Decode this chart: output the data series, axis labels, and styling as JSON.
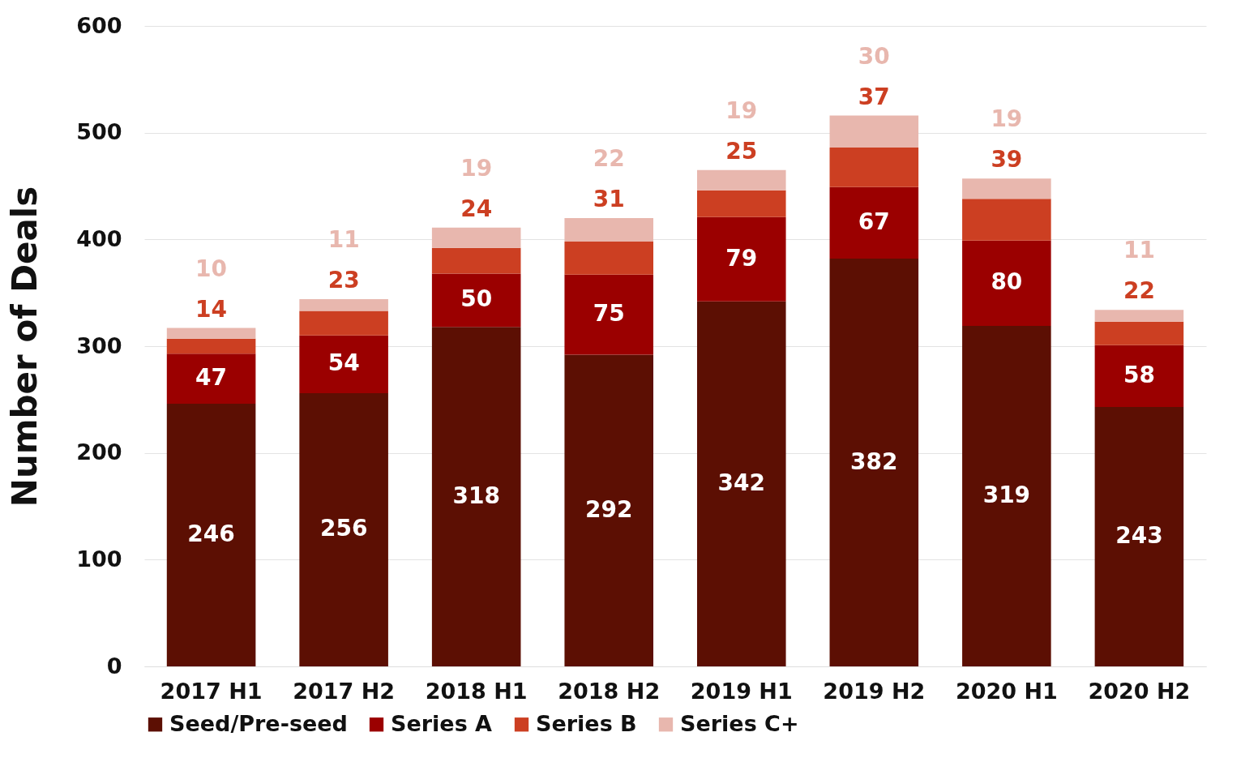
{
  "chart_data": {
    "type": "bar",
    "stacked": true,
    "ylabel": "Number of Deals",
    "categories": [
      "2017 H1",
      "2017 H2",
      "2018 H1",
      "2018 H2",
      "2019 H1",
      "2019 H2",
      "2020 H1",
      "2020 H2"
    ],
    "series": [
      {
        "name": "Seed/Pre-seed",
        "color": "#5c0f03",
        "values": [
          246,
          256,
          318,
          292,
          342,
          382,
          319,
          243
        ]
      },
      {
        "name": "Series A",
        "color": "#9b0000",
        "values": [
          47,
          54,
          50,
          75,
          79,
          67,
          80,
          58
        ]
      },
      {
        "name": "Series B",
        "color": "#cc3f22",
        "values": [
          14,
          23,
          24,
          31,
          25,
          37,
          39,
          22
        ]
      },
      {
        "name": "Series C+",
        "color": "#e8b7ae",
        "values": [
          10,
          11,
          19,
          22,
          19,
          30,
          19,
          11
        ]
      }
    ],
    "ylim": [
      0,
      600
    ],
    "yticks": [
      0,
      100,
      200,
      300,
      400,
      500,
      600
    ],
    "grid": "y",
    "legend": "bottom",
    "data_labels": true
  }
}
